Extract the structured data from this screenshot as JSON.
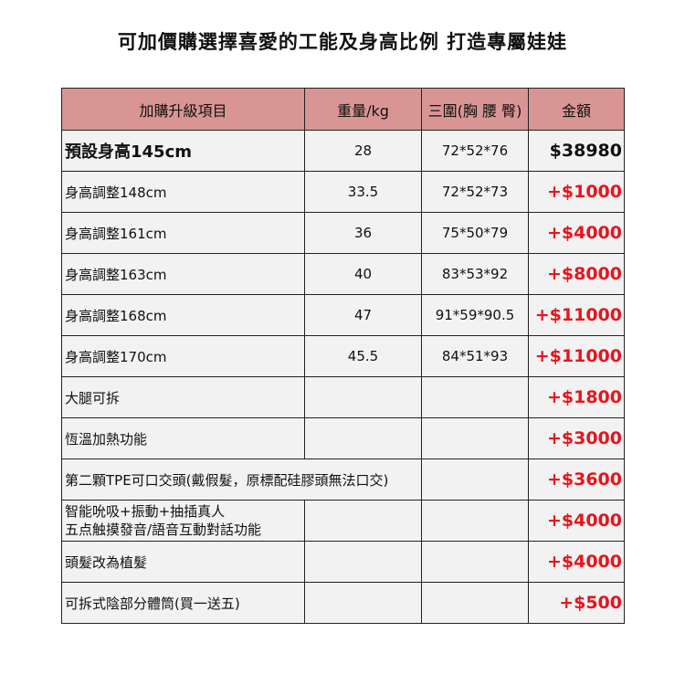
{
  "title": "可加價購選擇喜愛的工能及身高比例  打造專屬娃娃",
  "headers": [
    "加購升級項目",
    "重量/kg",
    "三圍(胸 腰 臀)",
    "金額"
  ],
  "rows": [
    {
      "item": "預設身高145cm",
      "weight": "28",
      "size": "72*52*76",
      "price": "$38980"
    },
    {
      "item": "身高調整148cm",
      "weight": "33.5",
      "size": "72*52*73",
      "price": "+$1000"
    },
    {
      "item": "身高調整161cm",
      "weight": "36",
      "size": "75*50*79",
      "price": "+$4000"
    },
    {
      "item": "身高調整163cm",
      "weight": "40",
      "size": "83*53*92",
      "price": "+$8000"
    },
    {
      "item": "身高調整168cm",
      "weight": "47",
      "size": "91*59*90.5",
      "price": "+$11000"
    },
    {
      "item": "身高調整170cm",
      "weight": "45.5",
      "size": "84*51*93",
      "price": "+$11000"
    },
    {
      "item": "大腿可拆",
      "weight": "",
      "size": "",
      "price": "+$1800"
    },
    {
      "item": "恆溫加熱功能",
      "weight": "",
      "size": "",
      "price": "+$3000"
    },
    {
      "item": "第二顆TPE可口交頭(戴假髮，原標配硅膠頭無法口交)",
      "size": "",
      "price": "+$3600"
    },
    {
      "item": "智能吮吸+振動+抽插真人",
      "item2": "五点触摸發音/語音互動對話功能",
      "weight": "",
      "size": "",
      "price": "+$4000"
    },
    {
      "item": "頭髮改為植髮",
      "weight": "",
      "size": "",
      "price": "+$4000"
    },
    {
      "item": "可拆式陰部分體筒(買一送五)",
      "weight": "",
      "size": "",
      "price": "+$500"
    }
  ]
}
